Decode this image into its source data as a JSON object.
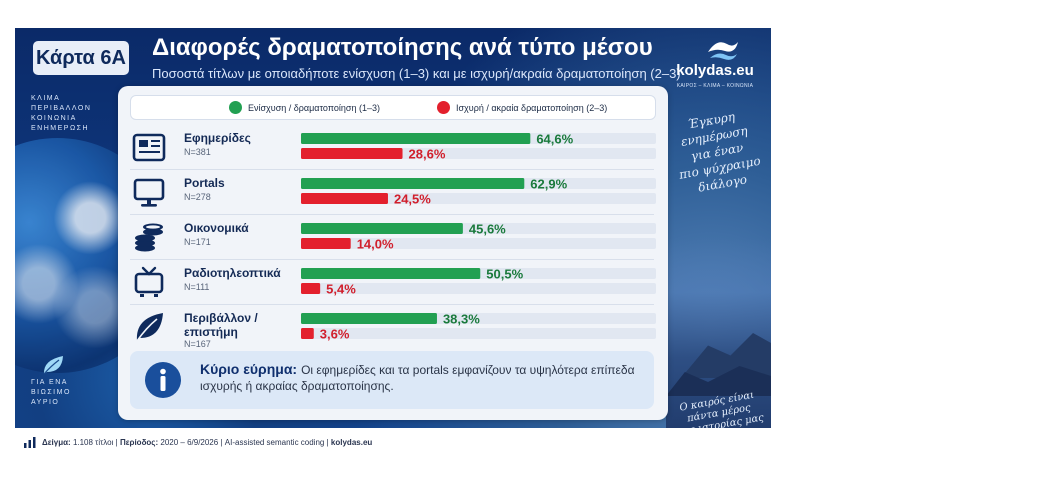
{
  "header": {
    "tag": "Κάρτα 6Α",
    "title": "Διαφορές δραματοποίησης ανά τύπο μέσου",
    "subtitle": "Ποσοστά τίτλων με οποιαδήποτε ενίσχυση (1–3) και με ισχυρή/ακραία δραματοποίηση (2–3)"
  },
  "brand": {
    "name": "kolydas.eu",
    "tagline": "ΚΑΙΡΟΣ – ΚΛΙΜΑ – ΚΟΙΝΩΝΙΑ"
  },
  "left_stack_top": [
    "ΚΛΙΜΑ",
    "ΠΕΡΙΒΑΛΛΟΝ",
    "ΚΟΙΝΩΝΙΑ",
    "ΕΝΗΜΕΡΩΣΗ"
  ],
  "left_stack_bottom": [
    "ΓΙΑ ΕΝΑ",
    "ΒΙΩΣΙΜΟ",
    "ΑΥΡΙΟ"
  ],
  "side_quote": [
    "Έγκυρη",
    "ενημέρωση",
    "για έναν",
    "πιο ψύχραιμο",
    "διάλογο"
  ],
  "bottom_quote": [
    "Ο καιρός είναι",
    "πάντα μέρος",
    "της ιστορίας μας"
  ],
  "rows": [
    {
      "label_lines": [
        "Εφημερίδες"
      ],
      "n": "N=381",
      "icon": "newspaper-icon"
    },
    {
      "label_lines": [
        "Portals"
      ],
      "n": "N=278",
      "icon": "monitor-icon"
    },
    {
      "label_lines": [
        "Οικονομικά"
      ],
      "n": "N=171",
      "icon": "coins-icon"
    },
    {
      "label_lines": [
        "Ραδιοτηλεοπτικά"
      ],
      "n": "N=111",
      "icon": "tv-icon"
    },
    {
      "label_lines": [
        "Περιβάλλον /",
        "επιστήμη"
      ],
      "n": "N=167",
      "icon": "leaf-icon"
    }
  ],
  "chart_data": {
    "type": "bar",
    "orientation": "horizontal",
    "title": "Διαφορές δραματοποίησης ανά τύπο μέσου",
    "subtitle": "Ποσοστά τίτλων με οποιαδήποτε ενίσχυση (1–3) και με ισχυρή/ακραία δραματοποίηση (2–3)",
    "categories": [
      "Εφημερίδες",
      "Portals",
      "Οικονομικά",
      "Ραδιοτηλεοπτικά",
      "Περιβάλλον / επιστήμη"
    ],
    "xlim": [
      0,
      100
    ],
    "series": [
      {
        "name": "Ενίσχυση / δραματοποίηση (1–3)",
        "color": "#22a052",
        "values": [
          64.6,
          62.9,
          45.6,
          50.5,
          38.3
        ],
        "labels": [
          "64,6%",
          "62,9%",
          "45,6%",
          "50,5%",
          "38,3%"
        ]
      },
      {
        "name": "Ισχυρή / ακραία δραματοποίηση (2–3)",
        "color": "#e3202d",
        "values": [
          28.6,
          24.5,
          14.0,
          5.4,
          3.6
        ],
        "labels": [
          "28,6%",
          "24,5%",
          "14,0%",
          "5,4%",
          "3,6%"
        ]
      }
    ],
    "legend": "top",
    "grid": false
  },
  "finding": {
    "title": "Κύριο εύρημα:",
    "text": "Οι εφημερίδες και τα portals εμφανίζουν τα υψηλότερα επίπεδα ισχυρής ή ακραίας δραματοποίησης."
  },
  "footer": {
    "sample_label": "Δείγμα:",
    "sample_value": "1.108 τίτλοι",
    "period_label": "Περίοδος:",
    "period_value": "2020 – 6/9/2026",
    "method": "AI-assisted semantic coding",
    "site": "kolydas.eu",
    "separator": "|"
  },
  "colors": {
    "navy": "#0f2a5c",
    "green": "#22a052",
    "red": "#e3202d",
    "track": "#e1e7f1"
  }
}
